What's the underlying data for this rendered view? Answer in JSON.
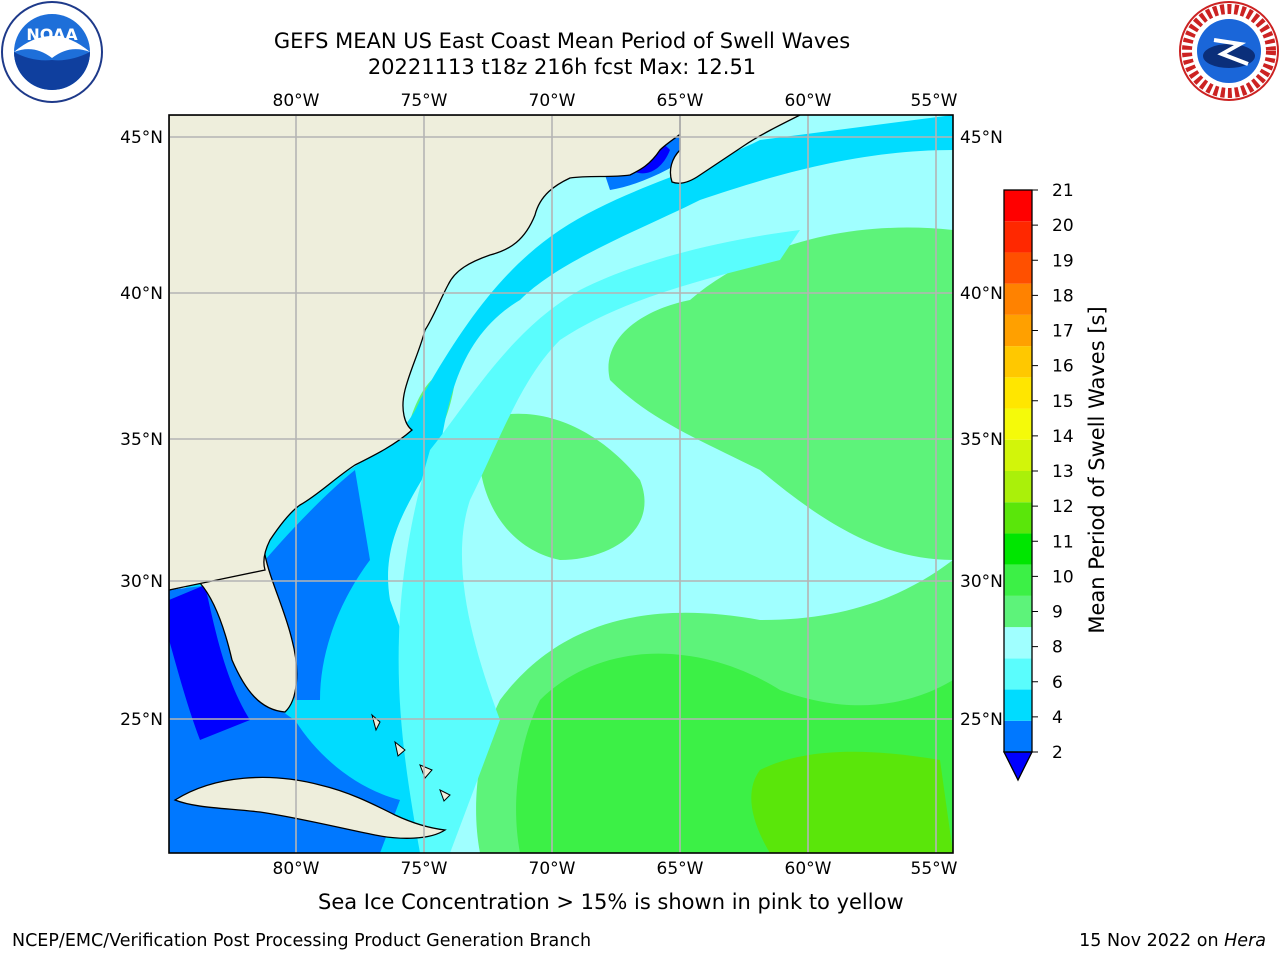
{
  "header": {
    "title_line1": "GEFS MEAN US East Coast Mean Period of Swell Waves",
    "title_line2": "20221113 t18z 216h fcst   Max: 12.51"
  },
  "logos": {
    "left": "noaa-logo",
    "right": "national-weather-service-logo"
  },
  "map": {
    "lon_labels": [
      "80°W",
      "75°W",
      "70°W",
      "65°W",
      "60°W",
      "55°W"
    ],
    "lat_labels": [
      "45°N",
      "40°N",
      "35°N",
      "30°N",
      "25°N"
    ],
    "extent": {
      "lon_min": -85,
      "lon_max": -54.5,
      "lat_min": 20.5,
      "lat_max": 45.8
    },
    "land_color": "#eeeedc",
    "grid_color": "#b4b4b4"
  },
  "colorbar": {
    "title": "Mean Period of Swell Waves [s]",
    "tick_labels": [
      "2",
      "4",
      "6",
      "8",
      "9",
      "10",
      "11",
      "12",
      "13",
      "14",
      "15",
      "16",
      "17",
      "18",
      "19",
      "20",
      "21"
    ],
    "colors": [
      "#0078ff",
      "#00dcff",
      "#5afdfd",
      "#a0ffff",
      "#5df37a",
      "#3cf046",
      "#00e600",
      "#5ae60a",
      "#aaf00a",
      "#d2f50a",
      "#f5fa0a",
      "#ffe600",
      "#ffc800",
      "#ffa000",
      "#ff8200",
      "#ff5000",
      "#ff2800",
      "#ff0000"
    ],
    "under_color": "#0000ff"
  },
  "footer": {
    "subtitle": "Sea Ice Concentration > 15% is shown in pink to yellow",
    "left": "NCEP/EMC/Verification Post Processing Product Generation Branch",
    "right_date": "15 Nov 2022 on",
    "right_host": "Hera"
  }
}
